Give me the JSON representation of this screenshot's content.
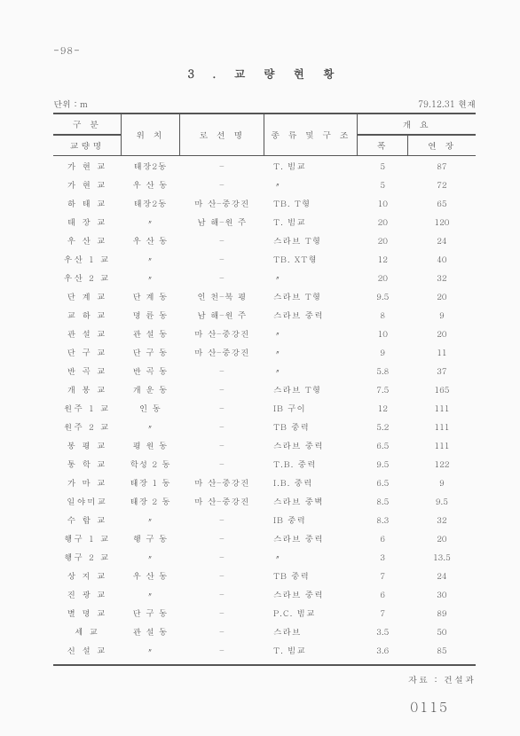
{
  "page_number": "-98-",
  "title": "3 . 교 량 현 황",
  "unit_label": "단위 : m",
  "date_label": "79.12.31 현재",
  "header": {
    "gubun": "구 분",
    "name_col": "교량명",
    "loc": "위 치",
    "route": "로 선 명",
    "type": "종 류  및  구 조",
    "summary": "개      요",
    "width": "폭",
    "length": "연 장"
  },
  "rows": [
    {
      "name": "가 현 교",
      "loc": "태장2동",
      "route": "–",
      "type": "T. 빔교",
      "w": "5",
      "l": "87"
    },
    {
      "name": "가 현 교",
      "loc": "우 산 동",
      "route": "–",
      "type": "〃",
      "w": "5",
      "l": "72"
    },
    {
      "name": "하 태 교",
      "loc": "태장2동",
      "route": "마 산–중강진",
      "type": "TB. T형",
      "w": "10",
      "l": "65"
    },
    {
      "name": "태 장 교",
      "loc": "〃",
      "route": "남 해–원 주",
      "type": "T. 빔교",
      "w": "20",
      "l": "120"
    },
    {
      "name": "우 산 교",
      "loc": "우 산 동",
      "route": "–",
      "type": "스라브 T형",
      "w": "20",
      "l": "24"
    },
    {
      "name": "우산 1 교",
      "loc": "〃",
      "route": "–",
      "type": "TB. XT형",
      "w": "12",
      "l": "40"
    },
    {
      "name": "우산 2 교",
      "loc": "〃",
      "route": "–",
      "type": "〃",
      "w": "20",
      "l": "32"
    },
    {
      "name": "단 계 교",
      "loc": "단 계 동",
      "route": "인 천–북 평",
      "type": "스라브 T형",
      "w": "9.5",
      "l": "20"
    },
    {
      "name": "교 하 교",
      "loc": "명 륜 동",
      "route": "남 해–원 주",
      "type": "스라브 중력",
      "w": "8",
      "l": "9"
    },
    {
      "name": "관 설 교",
      "loc": "관 설 동",
      "route": "마 산–중강진",
      "type": "〃",
      "w": "10",
      "l": "20"
    },
    {
      "name": "단 구 교",
      "loc": "단 구 동",
      "route": "마 산–중강진",
      "type": "〃",
      "w": "9",
      "l": "11"
    },
    {
      "name": "반 곡 교",
      "loc": "반 곡 동",
      "route": "–",
      "type": "〃",
      "w": "5.8",
      "l": "37"
    },
    {
      "name": "개 봉 교",
      "loc": "개 운 동",
      "route": "–",
      "type": "스라브 T형",
      "w": "7.5",
      "l": "165"
    },
    {
      "name": "원주 1 교",
      "loc": "인    동",
      "route": "–",
      "type": "IB  구이",
      "w": "12",
      "l": "111"
    },
    {
      "name": "원주 2 교",
      "loc": "〃",
      "route": "–",
      "type": "TB  중력",
      "w": "5.2",
      "l": "111"
    },
    {
      "name": "봉 평 교",
      "loc": "평 원 동",
      "route": "–",
      "type": "스라브 중력",
      "w": "6.5",
      "l": "111"
    },
    {
      "name": "통 학 교",
      "loc": "학성 2 동",
      "route": "–",
      "type": "T.B. 중력",
      "w": "9.5",
      "l": "122"
    },
    {
      "name": "가 마 교",
      "loc": "태장 1 동",
      "route": "마 산–중강진",
      "type": "I.B. 중력",
      "w": "6.5",
      "l": "9"
    },
    {
      "name": "일야미교",
      "loc": "태장 2 동",
      "route": "마 산–중강진",
      "type": "스라브 중벽",
      "w": "8.5",
      "l": "9.5"
    },
    {
      "name": "수 합 교",
      "loc": "〃",
      "route": "–",
      "type": "IB  중력",
      "w": "8.3",
      "l": "32"
    },
    {
      "name": "행구 1 교",
      "loc": "행 구 동",
      "route": "–",
      "type": "스라브 중력",
      "w": "6",
      "l": "20"
    },
    {
      "name": "행구 2 교",
      "loc": "〃",
      "route": "–",
      "type": "〃",
      "w": "3",
      "l": "13.5"
    },
    {
      "name": "상 지 교",
      "loc": "우 산 동",
      "route": "–",
      "type": "TB  중력",
      "w": "7",
      "l": "24"
    },
    {
      "name": "진 광 교",
      "loc": "〃",
      "route": "–",
      "type": "스라브 중력",
      "w": "6",
      "l": "30"
    },
    {
      "name": "별 명 교",
      "loc": "단 구 동",
      "route": "–",
      "type": "P.C. 빔교",
      "w": "7",
      "l": "89"
    },
    {
      "name": "세    교",
      "loc": "관 설 동",
      "route": "–",
      "type": "스라브",
      "w": "3.5",
      "l": "50"
    },
    {
      "name": "신 설 교",
      "loc": "〃",
      "route": "–",
      "type": "T. 빔교",
      "w": "3.6",
      "l": "85"
    }
  ],
  "source": "자료 : 건설과",
  "footer_number": "0115"
}
